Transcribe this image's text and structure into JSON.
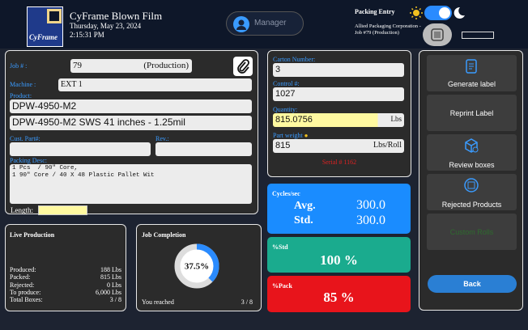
{
  "header": {
    "logo": "CyFrame",
    "app_name": "CyFrame Blown Film",
    "date": "Thursday, May 23, 2024",
    "time": "2:15:31 PM",
    "manager": "Manager",
    "packing_entry": "Packing Entry",
    "customer": "Allied Packaging Corporation - Job #79 (Production)"
  },
  "job": {
    "job_label": "Job # :",
    "job_number": "79",
    "job_status": "(Production)",
    "machine_label": "Machine :",
    "machine": "EXT 1",
    "product_label": "Product:",
    "product": "DPW-4950-M2",
    "product_desc": "DPW-4950-M2 SWS 41 inches - 1.25mil",
    "cust_part_label": "Cust. Part#:",
    "rev_label": "Rev.:",
    "packing_desc_label": "Packing Desc:",
    "packing_desc": "1 Pcs  / 90\" Core,\n1 90\" Core / 40 X 48 Plastic Pallet Wit",
    "length_label": "Length:"
  },
  "carton": {
    "carton_label": "Carton Number:",
    "carton_number": "3",
    "control_label": "Control #:",
    "control_number": "1027",
    "quantity_label": "Quantity:",
    "quantity": "815.0756",
    "quantity_unit": "Lbs",
    "part_weight_label": "Part weight",
    "part_weight": "815",
    "part_weight_unit": "Lbs/Roll",
    "serial": "Serial # 1162"
  },
  "cycles": {
    "title": "Cycles/sec",
    "avg_label": "Avg.",
    "avg": "300.0",
    "std_label": "Std.",
    "std": "300.0"
  },
  "std_box": {
    "title": "%Std",
    "value": "100 %"
  },
  "pack_box": {
    "title": "%Pack",
    "value": "85 %"
  },
  "actions": [
    "Generate label",
    "Reprint Label",
    "Review boxes",
    "Rejected Products",
    "Custom Rolls",
    "Back"
  ],
  "live_production": {
    "title": "Live Production",
    "rows": [
      [
        "Produced:",
        "188 Lbs"
      ],
      [
        "Packed:",
        "815 Lbs"
      ],
      [
        "Rejected:",
        "0 Lbs"
      ],
      [
        "To produce:",
        "6,000 Lbs"
      ],
      [
        "Total Boxes:",
        "3 / 8"
      ]
    ]
  },
  "job_completion": {
    "title": "Job Completion",
    "percent": {
      "value": 37.5,
      "label": "37.5%"
    },
    "reached_label": "You reached",
    "reached": "3 / 8"
  }
}
